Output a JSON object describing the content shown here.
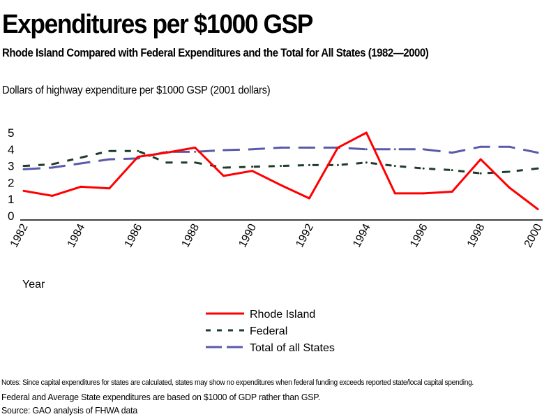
{
  "header": {
    "title": "Expenditures per $1000 GSP",
    "subtitle": "Rhode Island Compared with Federal Expenditures and the Total for All States (1982—2000)",
    "y_axis_caption": "Dollars of highway expenditure per $1000 GSP (2001 dollars)"
  },
  "chart_data": {
    "type": "line",
    "title": "Expenditures per $1000 GSP",
    "xlabel": "Year",
    "ylabel": "Dollars of highway expenditure per $1000 GSP (2001 dollars)",
    "x": [
      1982,
      1983,
      1984,
      1985,
      1986,
      1987,
      1988,
      1989,
      1990,
      1991,
      1992,
      1993,
      1994,
      1995,
      1996,
      1997,
      1998,
      1999,
      2000
    ],
    "x_tick_labels": [
      "1982",
      "1984",
      "1986",
      "1988",
      "1990",
      "1992",
      "1994",
      "1996",
      "1998",
      "2000"
    ],
    "y_tick_labels": [
      "0",
      "1",
      "2",
      "3",
      "4",
      "5"
    ],
    "ylim": [
      0,
      5
    ],
    "grid": false,
    "legend_position": "bottom-center",
    "series": [
      {
        "name": "Rhode Island",
        "color": "#ff0000",
        "style": "solid",
        "values": [
          1.5,
          1.2,
          1.75,
          1.65,
          3.55,
          3.8,
          4.1,
          2.4,
          2.7,
          1.85,
          1.05,
          4.1,
          5.0,
          1.35,
          1.35,
          1.45,
          3.4,
          1.7,
          0.4
        ]
      },
      {
        "name": "Federal",
        "color": "#1e3c28",
        "style": "short-dash",
        "values": [
          3.0,
          3.1,
          3.5,
          3.9,
          3.9,
          3.2,
          3.2,
          2.9,
          2.95,
          3.0,
          3.05,
          3.05,
          3.2,
          3.0,
          2.85,
          2.75,
          2.55,
          2.65,
          2.85
        ]
      },
      {
        "name": "Total of all States",
        "color": "#5a5aaa",
        "style": "long-dash",
        "values": [
          2.8,
          2.9,
          3.15,
          3.4,
          3.45,
          3.85,
          3.85,
          3.95,
          4.0,
          4.1,
          4.1,
          4.1,
          4.0,
          4.0,
          4.0,
          3.8,
          4.15,
          4.15,
          3.8
        ]
      }
    ]
  },
  "notes": {
    "line1": "Notes: Since capital expenditures for states are calculated, states may show no expenditures when federal funding exceeds reported state/local capital spending.",
    "line2": "Federal and Average State expenditures are based on $1000 of GDP rather than GSP.",
    "line3": "Source: GAO analysis of FHWA data"
  }
}
